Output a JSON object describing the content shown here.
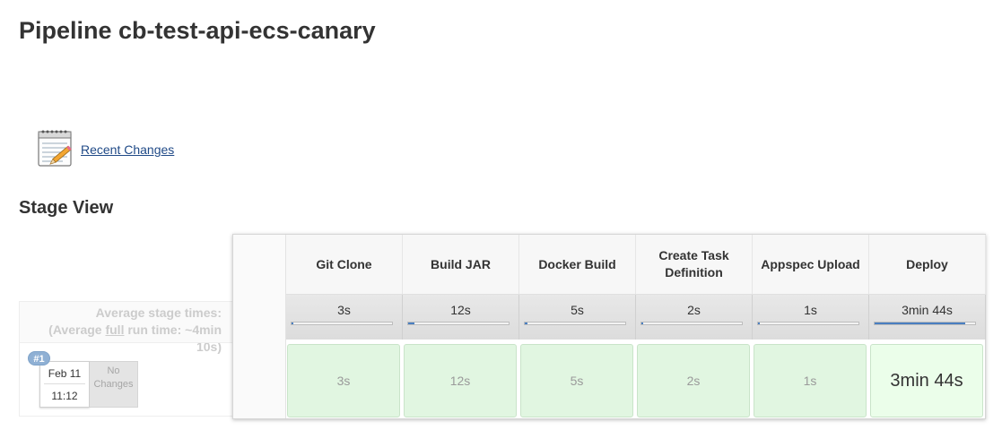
{
  "page": {
    "title": "Pipeline cb-test-api-ecs-canary"
  },
  "recent_changes": {
    "label": "Recent Changes",
    "icon": "notepad-icon"
  },
  "stage_view": {
    "title": "Stage View",
    "average_label_line1": "Average stage times:",
    "average_label_prefix": "(Average ",
    "average_label_full": "full",
    "average_label_suffix": " run time: ~4min",
    "average_label_line3": "10s)"
  },
  "build": {
    "number": "#1",
    "date": "Feb 11",
    "time": "11:12",
    "changes_line1": "No",
    "changes_line2": "Changes"
  },
  "stages": [
    {
      "name": "Git Clone",
      "avg": "3s",
      "run": "3s",
      "progress": 0.02
    },
    {
      "name": "Build JAR",
      "avg": "12s",
      "run": "12s",
      "progress": 0.06
    },
    {
      "name": "Docker Build",
      "avg": "5s",
      "run": "5s",
      "progress": 0.025
    },
    {
      "name": "Create Task Definition",
      "avg": "2s",
      "run": "2s",
      "progress": 0.012
    },
    {
      "name": "Appspec Upload",
      "avg": "1s",
      "run": "1s",
      "progress": 0.008
    },
    {
      "name": "Deploy",
      "avg": "3min 44s",
      "run": "3min 44s",
      "progress": 0.9
    }
  ],
  "colors": {
    "stage_success_bg": "#e1f6e1",
    "progress_fill": "#4a7fc1",
    "link": "#204a87"
  }
}
